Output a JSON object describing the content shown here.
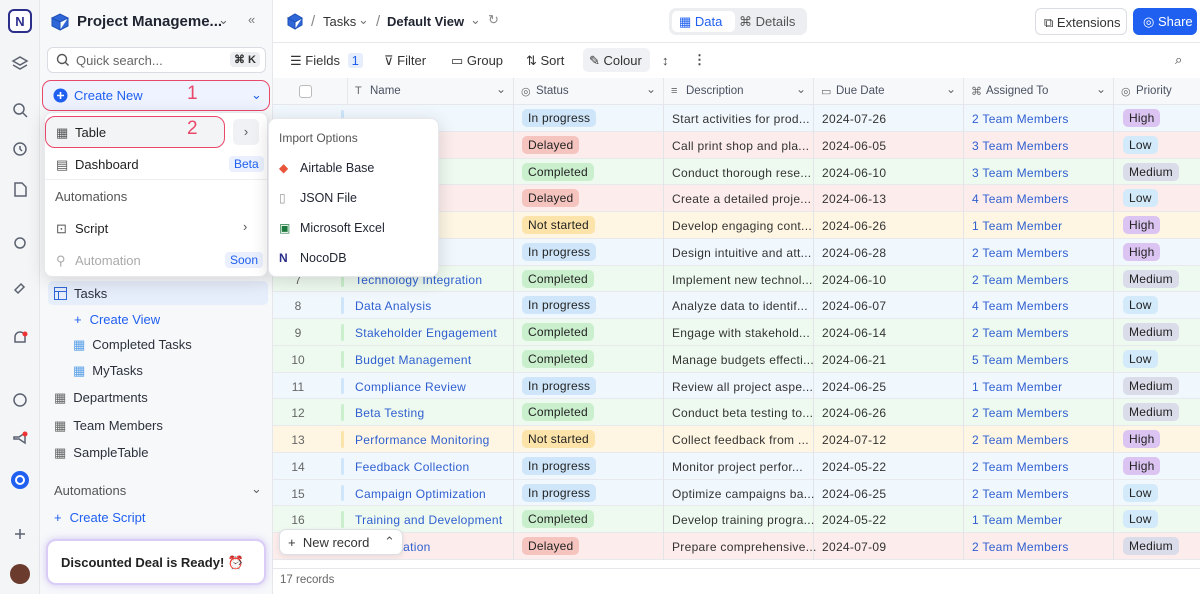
{
  "workspace": {
    "title": "Project Manageme...",
    "search": "Quick search...",
    "shortcut": "⌘ K"
  },
  "create_menu": {
    "button": "Create New",
    "step": "1",
    "items": [
      {
        "label": "Table",
        "step": "2"
      },
      {
        "label": "Dashboard",
        "badge": "Beta"
      }
    ],
    "section": "Automations",
    "automation_items": [
      {
        "label": "Script"
      },
      {
        "label": "Automation",
        "badge": "Soon"
      }
    ]
  },
  "import_menu": {
    "heading": "Import Options",
    "items": [
      "Airtable Base",
      "JSON File",
      "Microsoft Excel",
      "NocoDB"
    ]
  },
  "sidebar": {
    "items": [
      "Tasks",
      "Create View",
      "Completed Tasks",
      "MyTasks",
      "Departments",
      "Team Members",
      "SampleTable"
    ],
    "automations": "Automations",
    "create_script": "Create Script",
    "deal": "Discounted Deal is Ready! ⏰"
  },
  "header": {
    "table": "Tasks",
    "view": "Default View",
    "tabs": [
      "Data",
      "Details"
    ],
    "extensions": "Extensions",
    "share": "Share"
  },
  "toolbar": {
    "fields": "Fields",
    "fields_count": "1",
    "filter": "Filter",
    "group": "Group",
    "sort": "Sort",
    "colour": "Colour"
  },
  "table": {
    "columns": [
      "Name",
      "Status",
      "Description",
      "Due Date",
      "Assigned To",
      "Priority"
    ],
    "rows": [
      {
        "status": "In progress",
        "status_color": "#cfe6fa",
        "description": "Start activities for prod...",
        "due": "2024-07-26",
        "assigned": "2 Team Members",
        "priority": "High",
        "priority_color": "#dcc4f2"
      },
      {
        "status": "Delayed",
        "status_color": "#f6c4bf",
        "description": "Call print shop and pla...",
        "due": "2024-06-05",
        "assigned": "3 Team Members",
        "priority": "Low",
        "priority_color": "#d3eafb"
      },
      {
        "name": "n",
        "status": "Completed",
        "status_color": "#c9efcd",
        "description": "Conduct thorough rese...",
        "due": "2024-06-10",
        "assigned": "3 Team Members",
        "priority": "Medium",
        "priority_color": "#dadcea"
      },
      {
        "name": "pment",
        "status": "Delayed",
        "status_color": "#f6c4bf",
        "description": "Create a detailed proje...",
        "due": "2024-06-13",
        "assigned": "4 Team Members",
        "priority": "Low",
        "priority_color": "#d3eafb"
      },
      {
        "name": "n",
        "status": "Not started",
        "status_color": "#fbe3a9",
        "description": "Develop engaging cont...",
        "due": "2024-06-26",
        "assigned": "1 Team Member",
        "priority": "High",
        "priority_color": "#dcc4f2"
      },
      {
        "name": "e Design",
        "status": "In progress",
        "status_color": "#cfe6fa",
        "description": "Design intuitive and att...",
        "due": "2024-06-28",
        "assigned": "2 Team Members",
        "priority": "High",
        "priority_color": "#dcc4f2"
      },
      {
        "num": 7,
        "name": "Technology Integration",
        "status": "Completed",
        "status_color": "#c9efcd",
        "description": "Implement new technol...",
        "due": "2024-06-10",
        "assigned": "2 Team Members",
        "priority": "Medium",
        "priority_color": "#dadcea"
      },
      {
        "num": 8,
        "name": "Data Analysis",
        "status": "In progress",
        "status_color": "#cfe6fa",
        "description": "Analyze data to identif...",
        "due": "2024-06-07",
        "assigned": "4 Team Members",
        "priority": "Low",
        "priority_color": "#d3eafb"
      },
      {
        "num": 9,
        "name": "Stakeholder Engagement",
        "status": "Completed",
        "status_color": "#c9efcd",
        "description": "Engage with stakehold...",
        "due": "2024-06-14",
        "assigned": "2 Team Members",
        "priority": "Medium",
        "priority_color": "#dadcea"
      },
      {
        "num": 10,
        "name": "Budget Management",
        "status": "Completed",
        "status_color": "#c9efcd",
        "description": "Manage budgets effecti...",
        "due": "2024-06-21",
        "assigned": "5 Team Members",
        "priority": "Low",
        "priority_color": "#d3eafb"
      },
      {
        "num": 11,
        "name": "Compliance Review",
        "status": "In progress",
        "status_color": "#cfe6fa",
        "description": "Review all project aspe...",
        "due": "2024-06-25",
        "assigned": "1 Team Member",
        "priority": "Medium",
        "priority_color": "#dadcea"
      },
      {
        "num": 12,
        "name": "Beta Testing",
        "status": "Completed",
        "status_color": "#c9efcd",
        "description": "Conduct beta testing to...",
        "due": "2024-06-26",
        "assigned": "2 Team Members",
        "priority": "Medium",
        "priority_color": "#dadcea"
      },
      {
        "num": 13,
        "name": "Performance Monitoring",
        "status": "Not started",
        "status_color": "#fbe3a9",
        "description": "Collect feedback from ...",
        "due": "2024-07-12",
        "assigned": "2 Team Members",
        "priority": "High",
        "priority_color": "#dcc4f2"
      },
      {
        "num": 14,
        "name": "Feedback Collection",
        "status": "In progress",
        "status_color": "#cfe6fa",
        "description": "Monitor project perfor...",
        "due": "2024-05-22",
        "assigned": "2 Team Members",
        "priority": "High",
        "priority_color": "#dcc4f2"
      },
      {
        "num": 15,
        "name": "Campaign Optimization",
        "status": "In progress",
        "status_color": "#cfe6fa",
        "description": "Optimize campaigns ba...",
        "due": "2024-06-25",
        "assigned": "2 Team Members",
        "priority": "Low",
        "priority_color": "#d3eafb"
      },
      {
        "num": 16,
        "name": "Training and Development",
        "status": "Completed",
        "status_color": "#c9efcd",
        "description": "Develop training progra...",
        "due": "2024-05-22",
        "assigned": "1 Team Member",
        "priority": "Low",
        "priority_color": "#d3eafb"
      },
      {
        "name": "ocumentation",
        "status": "Delayed",
        "status_color": "#f6c4bf",
        "description": "Prepare comprehensive...",
        "due": "2024-07-09",
        "assigned": "2 Team Members",
        "priority": "Medium",
        "priority_color": "#dadcea"
      }
    ]
  },
  "footer": {
    "new_record": "New record",
    "count": "17 records"
  }
}
